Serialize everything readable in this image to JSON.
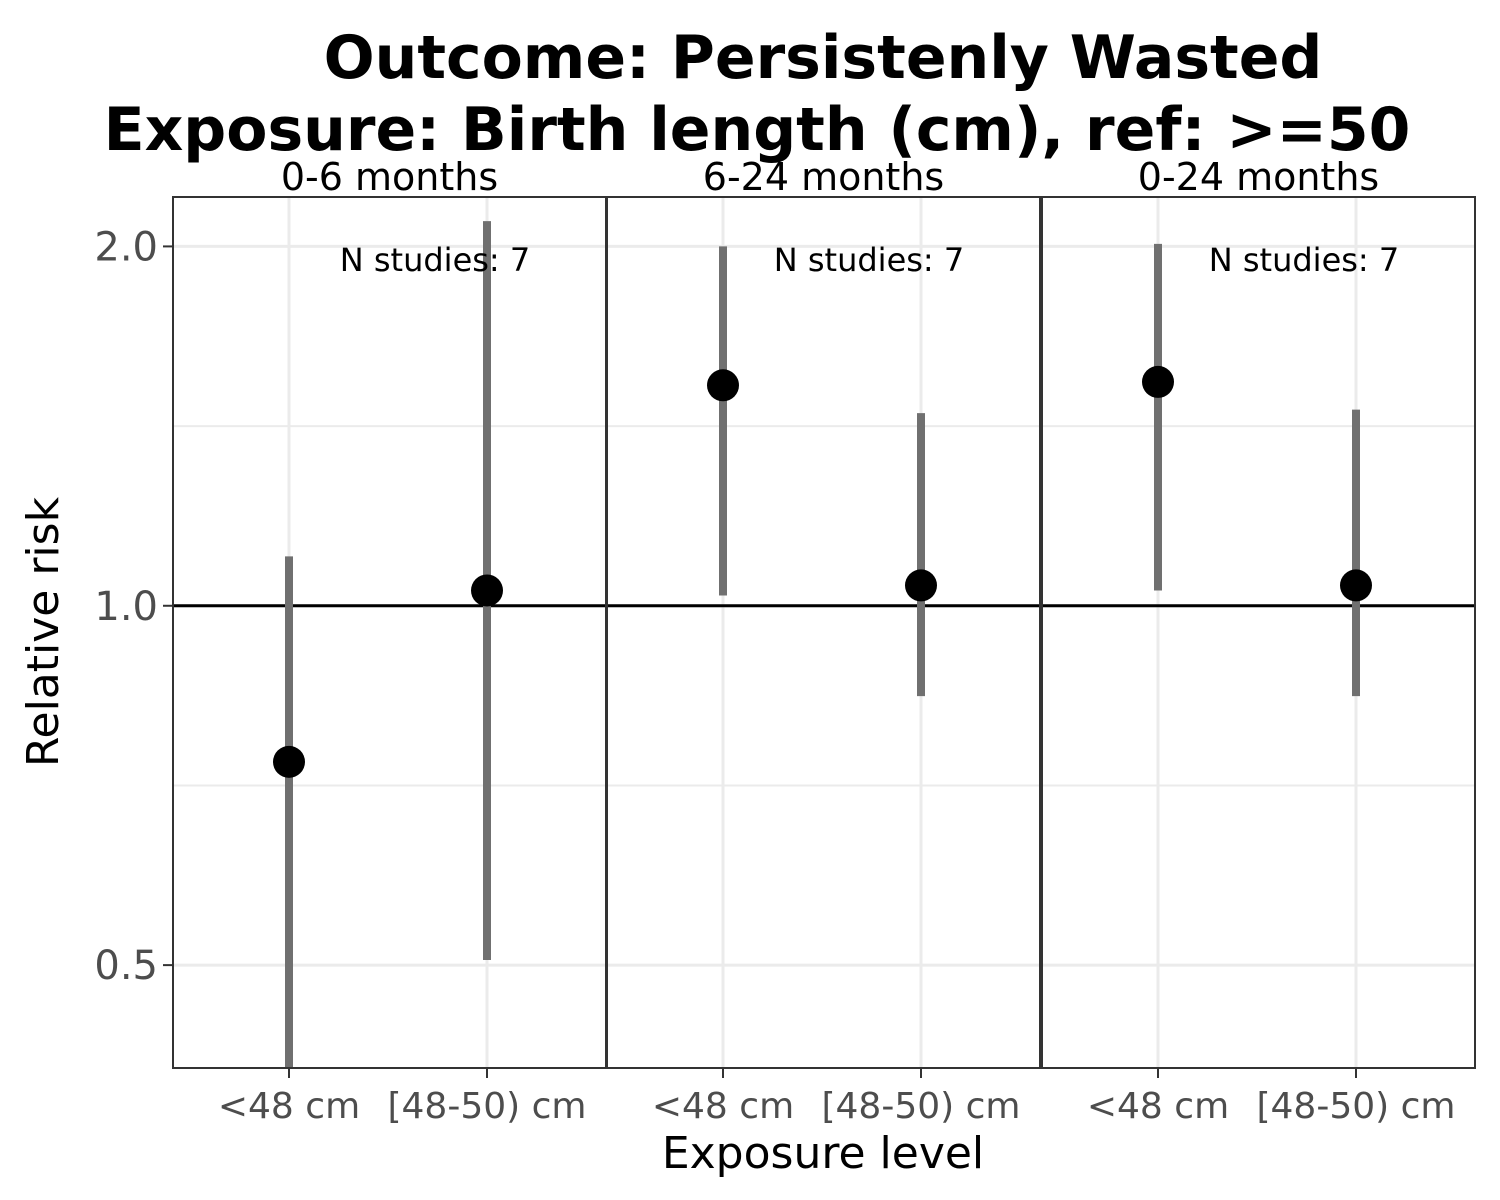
{
  "chart_data": {
    "type": "scatter",
    "title_lines": [
      "Outcome: Persistenly Wasted",
      "Exposure: Birth length (cm), ref: >=50"
    ],
    "xlabel": "Exposure level",
    "ylabel": "Relative risk",
    "y_scale": "log",
    "ylim": [
      0.41,
      2.2
    ],
    "y_ticks": [
      0.5,
      1.0,
      2.0
    ],
    "y_tick_labels": [
      "0.5",
      "1.0",
      "2.0"
    ],
    "y_minor_gridlines": [
      0.7071,
      1.4142
    ],
    "reference_line": 1.0,
    "categories": [
      "<48 cm",
      "[48-50) cm"
    ],
    "grid": true,
    "colors": {
      "point": "#000000",
      "ci": "#707070",
      "grid": "#ebebeb",
      "panel_border": "#333333",
      "reference_line": "#000000"
    },
    "panels": [
      {
        "label": "0-6 months",
        "annotation": "N studies: 7",
        "points": [
          {
            "category": "<48 cm",
            "rr": 0.74,
            "ci_lower": 0.41,
            "ci_upper": 1.1
          },
          {
            "category": "[48-50) cm",
            "rr": 1.03,
            "ci_lower": 0.505,
            "ci_upper": 2.1
          }
        ]
      },
      {
        "label": "6-24 months",
        "annotation": "N studies: 7",
        "points": [
          {
            "category": "<48 cm",
            "rr": 1.53,
            "ci_lower": 1.02,
            "ci_upper": 2.0
          },
          {
            "category": "[48-50) cm",
            "rr": 1.04,
            "ci_lower": 0.84,
            "ci_upper": 1.45
          }
        ]
      },
      {
        "label": "0-24 months",
        "annotation": "N studies: 7",
        "points": [
          {
            "category": "<48 cm",
            "rr": 1.54,
            "ci_lower": 1.03,
            "ci_upper": 2.01
          },
          {
            "category": "[48-50) cm",
            "rr": 1.04,
            "ci_lower": 0.84,
            "ci_upper": 1.46
          }
        ]
      }
    ]
  }
}
